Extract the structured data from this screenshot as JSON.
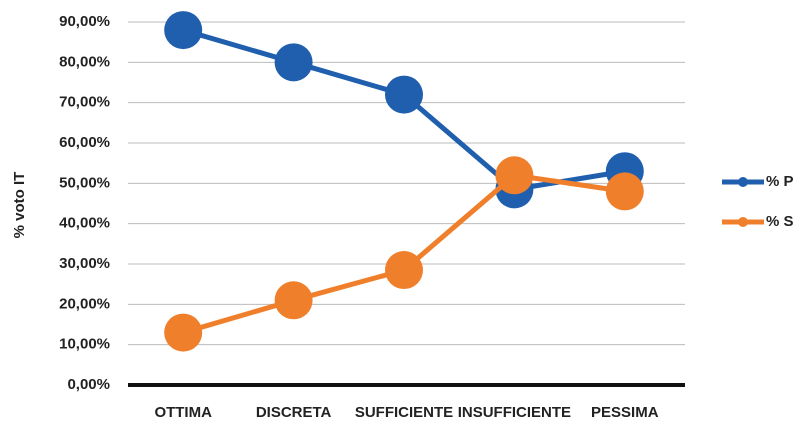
{
  "chart_data": {
    "type": "line",
    "y_label": "% voto IT",
    "categories": [
      "OTTIMA",
      "DISCRETA",
      "SUFFICIENTE",
      "INSUFFICIENTE",
      "PESSIMA"
    ],
    "series": [
      {
        "name": "% P",
        "color": "#1f5fae",
        "values": [
          88,
          80,
          72,
          48.5,
          53
        ]
      },
      {
        "name": "% S",
        "color": "#f07f2c",
        "values": [
          13,
          21,
          28.5,
          52,
          48
        ]
      }
    ],
    "ylim": [
      0,
      90
    ],
    "yticks": [
      {
        "value": 0,
        "label": "0,00%"
      },
      {
        "value": 10,
        "label": "10,00%"
      },
      {
        "value": 20,
        "label": "20,00%"
      },
      {
        "value": 30,
        "label": "30,00%"
      },
      {
        "value": 40,
        "label": "40,00%"
      },
      {
        "value": 50,
        "label": "50,00%"
      },
      {
        "value": 60,
        "label": "60,00%"
      },
      {
        "value": 70,
        "label": "70,00%"
      },
      {
        "value": 80,
        "label": "80,00%"
      },
      {
        "value": 90,
        "label": "90,00%"
      }
    ],
    "grid": true,
    "legend": "right"
  }
}
